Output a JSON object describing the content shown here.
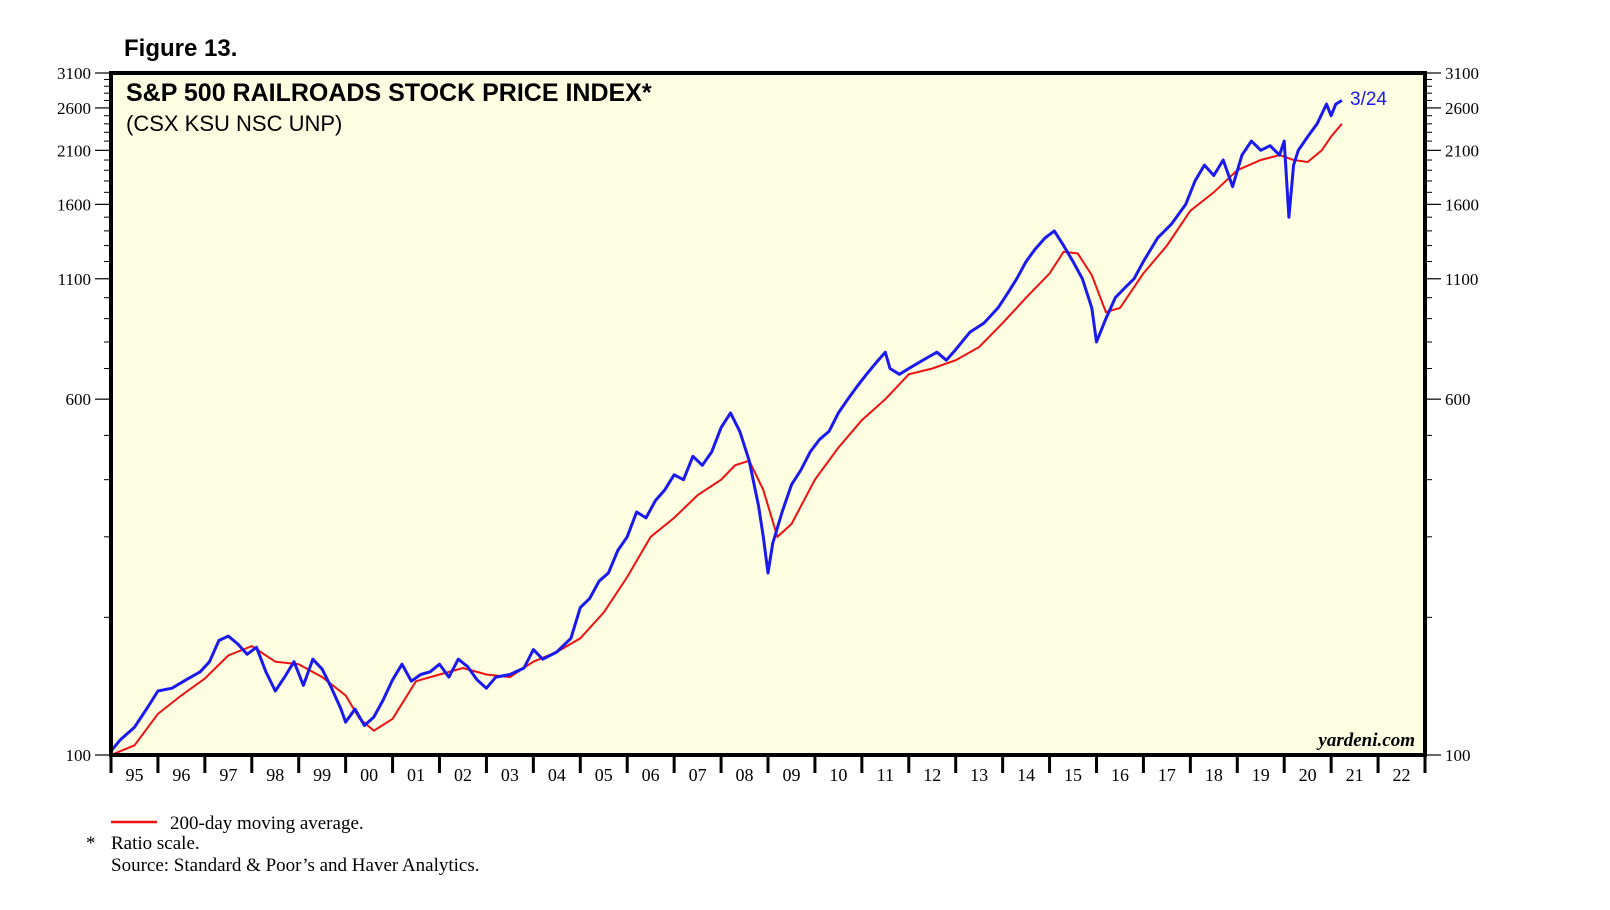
{
  "figure_label": "Figure 13.",
  "footnotes": {
    "legend_ma": "200-day moving average.",
    "star": "*",
    "ratio": "Ratio scale.",
    "source": "Source: Standard & Poor’s and Haver Analytics."
  },
  "watermark": "yardeni.com",
  "last_date_label": "3/24",
  "colors": {
    "background": "#fdfde2",
    "index": "#1a1aee",
    "moving_average": "#ee1111"
  },
  "chart_data": {
    "type": "line",
    "title": "S&P 500 RAILROADS STOCK PRICE INDEX*",
    "subtitle": "(CSX KSU NSC UNP)",
    "scale": "log",
    "ylim": [
      100,
      3100
    ],
    "yticks": [
      100,
      600,
      1100,
      1600,
      2100,
      2600,
      3100
    ],
    "ytick_labels": [
      "100",
      "600",
      "1100",
      "1600",
      "2100",
      "2600",
      "3100"
    ],
    "xlim": [
      1995.0,
      2023.0
    ],
    "xtick_labels": [
      "95",
      "96",
      "97",
      "98",
      "99",
      "00",
      "01",
      "02",
      "03",
      "04",
      "05",
      "06",
      "07",
      "08",
      "09",
      "10",
      "11",
      "12",
      "13",
      "14",
      "15",
      "16",
      "17",
      "18",
      "19",
      "20",
      "21",
      "22"
    ],
    "series": [
      {
        "name": "S&P 500 Railroads Stock Price Index",
        "x": [
          1995.0,
          1995.2,
          1995.5,
          1995.8,
          1996.0,
          1996.3,
          1996.6,
          1996.9,
          1997.1,
          1997.3,
          1997.5,
          1997.7,
          1997.9,
          1998.1,
          1998.3,
          1998.5,
          1998.7,
          1998.9,
          1999.1,
          1999.3,
          1999.5,
          1999.7,
          1999.9,
          2000.0,
          2000.2,
          2000.4,
          2000.6,
          2000.8,
          2001.0,
          2001.2,
          2001.4,
          2001.6,
          2001.8,
          2002.0,
          2002.2,
          2002.4,
          2002.6,
          2002.8,
          2003.0,
          2003.2,
          2003.5,
          2003.8,
          2004.0,
          2004.2,
          2004.5,
          2004.8,
          2005.0,
          2005.2,
          2005.4,
          2005.6,
          2005.8,
          2006.0,
          2006.2,
          2006.4,
          2006.6,
          2006.8,
          2007.0,
          2007.2,
          2007.4,
          2007.6,
          2007.8,
          2008.0,
          2008.2,
          2008.4,
          2008.6,
          2008.8,
          2008.9,
          2009.0,
          2009.1,
          2009.3,
          2009.5,
          2009.7,
          2009.9,
          2010.1,
          2010.3,
          2010.5,
          2010.7,
          2010.9,
          2011.1,
          2011.3,
          2011.5,
          2011.6,
          2011.8,
          2012.0,
          2012.2,
          2012.4,
          2012.6,
          2012.8,
          2013.0,
          2013.3,
          2013.6,
          2013.9,
          2014.1,
          2014.3,
          2014.5,
          2014.7,
          2014.9,
          2015.1,
          2015.3,
          2015.5,
          2015.7,
          2015.9,
          2016.0,
          2016.2,
          2016.4,
          2016.6,
          2016.8,
          2017.0,
          2017.3,
          2017.6,
          2017.9,
          2018.1,
          2018.3,
          2018.5,
          2018.7,
          2018.9,
          2019.1,
          2019.3,
          2019.5,
          2019.7,
          2019.9,
          2020.0,
          2020.1,
          2020.2,
          2020.3,
          2020.5,
          2020.7,
          2020.9,
          2021.0,
          2021.1,
          2021.23
        ],
        "values": [
          102,
          108,
          115,
          128,
          138,
          140,
          146,
          152,
          160,
          178,
          182,
          175,
          166,
          172,
          152,
          138,
          148,
          160,
          142,
          162,
          154,
          140,
          126,
          118,
          126,
          116,
          121,
          132,
          146,
          158,
          145,
          150,
          152,
          158,
          148,
          162,
          156,
          146,
          140,
          148,
          150,
          155,
          170,
          162,
          168,
          180,
          210,
          220,
          240,
          250,
          280,
          300,
          340,
          330,
          360,
          380,
          410,
          400,
          450,
          430,
          460,
          520,
          560,
          510,
          440,
          350,
          300,
          250,
          290,
          340,
          390,
          420,
          460,
          490,
          510,
          560,
          600,
          640,
          680,
          720,
          760,
          700,
          680,
          700,
          720,
          740,
          760,
          730,
          770,
          840,
          880,
          950,
          1020,
          1100,
          1200,
          1280,
          1350,
          1400,
          1300,
          1200,
          1100,
          950,
          800,
          900,
          1000,
          1050,
          1100,
          1200,
          1350,
          1450,
          1600,
          1800,
          1950,
          1850,
          2000,
          1750,
          2050,
          2200,
          2100,
          2150,
          2050,
          2200,
          1500,
          1950,
          2100,
          2250,
          2400,
          2650,
          2500,
          2650,
          2700
        ]
      },
      {
        "name": "200-day moving average",
        "x": [
          1995.0,
          1995.5,
          1996.0,
          1996.5,
          1997.0,
          1997.5,
          1998.0,
          1998.5,
          1999.0,
          1999.5,
          2000.0,
          2000.3,
          2000.6,
          2001.0,
          2001.5,
          2002.0,
          2002.5,
          2003.0,
          2003.5,
          2004.0,
          2004.5,
          2005.0,
          2005.5,
          2006.0,
          2006.5,
          2007.0,
          2007.5,
          2008.0,
          2008.3,
          2008.6,
          2008.9,
          2009.2,
          2009.5,
          2010.0,
          2010.5,
          2011.0,
          2011.5,
          2012.0,
          2012.5,
          2013.0,
          2013.5,
          2014.0,
          2014.5,
          2015.0,
          2015.3,
          2015.6,
          2015.9,
          2016.2,
          2016.5,
          2017.0,
          2017.5,
          2018.0,
          2018.5,
          2019.0,
          2019.5,
          2019.9,
          2020.2,
          2020.5,
          2020.8,
          2021.0,
          2021.23
        ],
        "values": [
          100,
          105,
          123,
          135,
          147,
          165,
          173,
          160,
          158,
          148,
          135,
          120,
          113,
          120,
          145,
          150,
          155,
          150,
          148,
          160,
          168,
          180,
          205,
          245,
          300,
          330,
          370,
          400,
          430,
          440,
          380,
          300,
          320,
          400,
          470,
          540,
          600,
          680,
          700,
          730,
          780,
          880,
          1000,
          1130,
          1260,
          1250,
          1120,
          930,
          950,
          1130,
          1300,
          1550,
          1700,
          1900,
          2000,
          2050,
          2000,
          1980,
          2100,
          2250,
          2400
        ]
      }
    ]
  }
}
